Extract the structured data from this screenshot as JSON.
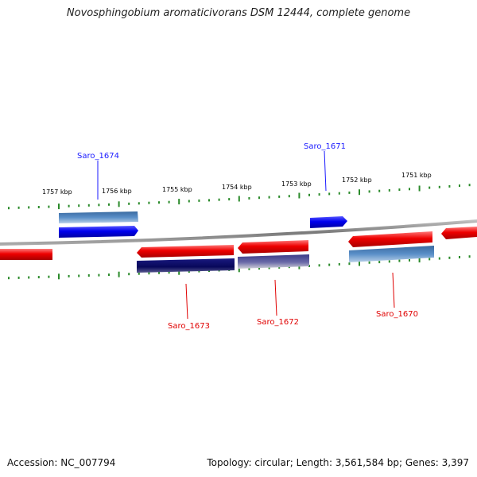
{
  "header": {
    "title": "Novosphingobium aromaticivorans DSM 12444, complete genome"
  },
  "footer": {
    "accession": "Accession: NC_007794",
    "stats": "Topology: circular; Length: 3,561,584 bp; Genes: 3,397"
  },
  "scale": {
    "tick_labels": [
      "1757 kbp",
      "1756 kbp",
      "1755 kbp",
      "1754 kbp",
      "1753 kbp",
      "1752 kbp",
      "1751 kbp"
    ]
  },
  "genes": [
    {
      "name": "Saro_1674",
      "strand": "top",
      "color": "#1a1aff"
    },
    {
      "name": "Saro_1671",
      "strand": "top",
      "color": "#1a1aff"
    },
    {
      "name": "Saro_1673",
      "strand": "bottom",
      "color": "#e00000"
    },
    {
      "name": "Saro_1672",
      "strand": "bottom",
      "color": "#e00000"
    },
    {
      "name": "Saro_1670",
      "strand": "bottom",
      "color": "#e00000"
    }
  ],
  "colors": {
    "forward_gene": "#0000ee",
    "reverse_gene": "#ee0000",
    "forward_cds": "#4a7fb5",
    "reverse_cds_dark": "#0a0a6e",
    "reverse_cds_mid": "#505090",
    "backbone": "#8a8a8a",
    "ticks": "#2a8a2a"
  }
}
